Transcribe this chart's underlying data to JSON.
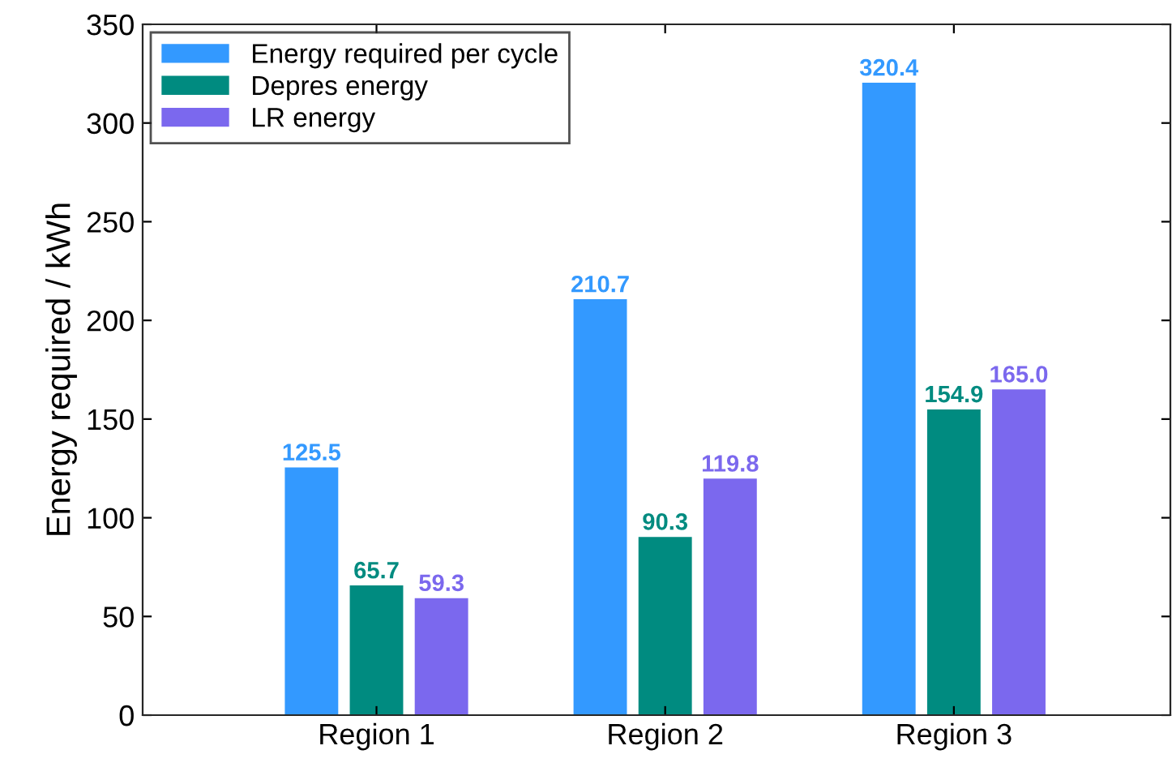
{
  "chart_data": {
    "type": "bar",
    "ylabel": "Energy required / kWh",
    "categories": [
      "Region 1",
      "Region 2",
      "Region 3"
    ],
    "series": [
      {
        "name": "Energy required per cycle",
        "color": "#3399ff",
        "values": [
          125.5,
          210.7,
          320.4
        ],
        "value_labels": [
          "125.5",
          "210.7",
          "320.4"
        ]
      },
      {
        "name": "Depres energy",
        "color": "#008b80",
        "values": [
          65.7,
          90.3,
          154.9
        ],
        "value_labels": [
          "65.7",
          "90.3",
          "154.9"
        ]
      },
      {
        "name": "LR energy",
        "color": "#7b68ee",
        "values": [
          59.3,
          119.8,
          165.0
        ],
        "value_labels": [
          "59.3",
          "119.8",
          "165.0"
        ]
      }
    ],
    "ylim": [
      0,
      350
    ],
    "yticks": [
      0,
      50,
      100,
      150,
      200,
      250,
      300,
      350
    ],
    "grid": false,
    "legend": "top left"
  }
}
